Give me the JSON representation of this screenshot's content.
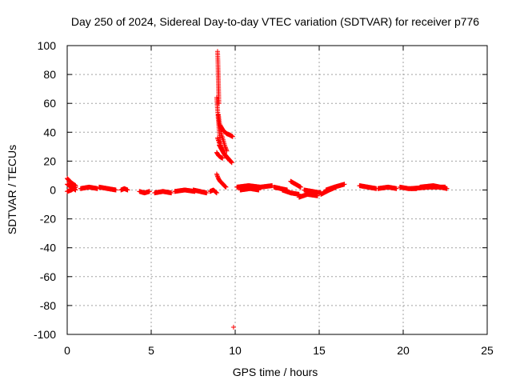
{
  "chart_data": {
    "type": "scatter",
    "title": "Day 250 of 2024, Sidereal Day-to-day VTEC variation (SDTVAR) for receiver p776",
    "xlabel": "GPS time / hours",
    "ylabel": "SDTVAR / TECUs",
    "xlim": [
      0,
      25
    ],
    "ylim": [
      -100,
      100
    ],
    "xticks": [
      0,
      5,
      10,
      15,
      20,
      25
    ],
    "yticks": [
      100,
      80,
      60,
      40,
      20,
      0,
      -20,
      -40,
      -60,
      -80,
      -100
    ],
    "grid": true,
    "marker": "+",
    "color": "#ff0000",
    "segments": [
      {
        "x": [
          0.0,
          0.25,
          0.5
        ],
        "y": [
          8,
          5,
          3
        ]
      },
      {
        "x": [
          0.0,
          0.25,
          0.5
        ],
        "y": [
          4,
          2,
          0
        ]
      },
      {
        "x": [
          0.0,
          0.25,
          0.5
        ],
        "y": [
          -1,
          0,
          2
        ]
      },
      {
        "x": [
          0.8,
          1.3,
          1.8
        ],
        "y": [
          1,
          2,
          1
        ]
      },
      {
        "x": [
          1.9,
          2.4,
          2.9
        ],
        "y": [
          2,
          1,
          0
        ]
      },
      {
        "x": [
          3.2,
          3.4,
          3.6
        ],
        "y": [
          0,
          1,
          0
        ]
      },
      {
        "x": [
          4.3,
          4.6,
          4.9
        ],
        "y": [
          -1,
          -2,
          -1
        ]
      },
      {
        "x": [
          5.2,
          5.7,
          6.2
        ],
        "y": [
          -2,
          -1,
          -2
        ]
      },
      {
        "x": [
          6.4,
          7.0,
          7.6
        ],
        "y": [
          -1,
          0,
          -1
        ]
      },
      {
        "x": [
          7.5,
          7.9,
          8.3
        ],
        "y": [
          0,
          -1,
          -2
        ]
      },
      {
        "x": [
          8.5,
          8.7,
          8.9
        ],
        "y": [
          -1,
          0,
          -2
        ]
      },
      {
        "x": [
          8.95,
          8.97,
          8.99,
          9.01,
          9.03
        ],
        "y": [
          96,
          90,
          80,
          70,
          60
        ]
      },
      {
        "x": [
          8.9,
          8.95,
          9.0,
          9.05,
          9.1,
          9.15
        ],
        "y": [
          64,
          56,
          48,
          40,
          34,
          29
        ]
      },
      {
        "x": [
          9.0,
          9.1,
          9.2,
          9.3,
          9.4,
          9.5
        ],
        "y": [
          52,
          44,
          38,
          34,
          30,
          27
        ]
      },
      {
        "x": [
          8.95,
          9.1,
          9.25,
          9.4,
          9.55,
          9.7
        ],
        "y": [
          36,
          31,
          27,
          24,
          22,
          20
        ]
      },
      {
        "x": [
          9.1,
          9.3,
          9.5,
          9.7,
          9.85
        ],
        "y": [
          45,
          41,
          39,
          38,
          37
        ]
      },
      {
        "x": [
          8.9,
          9.0,
          9.1,
          9.25
        ],
        "y": [
          26,
          24,
          23,
          22
        ]
      },
      {
        "x": [
          9.05,
          9.2,
          9.35,
          9.5,
          9.65,
          9.8
        ],
        "y": [
          31,
          28,
          25,
          23,
          21,
          19
        ]
      },
      {
        "x": [
          8.9,
          9.0,
          9.1,
          9.2,
          9.35,
          9.45
        ],
        "y": [
          11,
          8,
          6,
          5,
          3,
          2
        ]
      },
      {
        "x": [
          9.9
        ],
        "y": [
          -95
        ]
      },
      {
        "x": [
          10.1,
          10.8,
          11.5,
          12.2
        ],
        "y": [
          2,
          3,
          2,
          3
        ]
      },
      {
        "x": [
          10.3,
          10.9,
          11.4
        ],
        "y": [
          0,
          1,
          0
        ]
      },
      {
        "x": [
          12.3,
          12.7,
          13.1
        ],
        "y": [
          2,
          1,
          0
        ]
      },
      {
        "x": [
          12.8,
          13.3,
          13.8
        ],
        "y": [
          0,
          -2,
          -3
        ]
      },
      {
        "x": [
          13.3,
          13.6,
          13.9
        ],
        "y": [
          6,
          4,
          2
        ]
      },
      {
        "x": [
          13.8,
          14.3,
          14.9
        ],
        "y": [
          -5,
          -3,
          -4
        ]
      },
      {
        "x": [
          14.1,
          14.6,
          15.1
        ],
        "y": [
          0,
          -1,
          -2
        ]
      },
      {
        "x": [
          15.1,
          15.6,
          16.0
        ],
        "y": [
          -3,
          0,
          2
        ]
      },
      {
        "x": [
          15.4,
          15.9,
          16.5
        ],
        "y": [
          0,
          2,
          4
        ]
      },
      {
        "x": [
          17.4,
          17.9,
          18.4
        ],
        "y": [
          3,
          2,
          1
        ]
      },
      {
        "x": [
          18.5,
          19.1,
          19.6
        ],
        "y": [
          1,
          2,
          1
        ]
      },
      {
        "x": [
          19.8,
          20.3,
          20.8
        ],
        "y": [
          2,
          1,
          1
        ]
      },
      {
        "x": [
          20.5,
          21.5,
          22.5
        ],
        "y": [
          1,
          2,
          2
        ]
      },
      {
        "x": [
          21.0,
          21.8,
          22.6
        ],
        "y": [
          2,
          3,
          1
        ]
      }
    ]
  }
}
